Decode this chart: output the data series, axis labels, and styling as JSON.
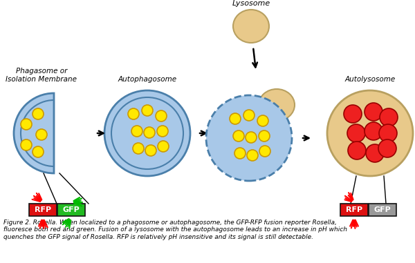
{
  "caption": "Figure 2. Rosella. When localized to a phagosome or autophagosome, the GFP-RFP fusion reporter Rosella,\nfluoresce both red and green. Fusion of a lysosome with the autophagosome leads to an increase in pH which\nquenches the GFP signal of Rosella. RFP is relatively pH insensitive and its signal is still detectable.",
  "lysosome_color": "#E8C98A",
  "lysosome_edge": "#B8A060",
  "phagosome_fill": "#A8C8E8",
  "phagosome_edge": "#4A7FAA",
  "dot_yellow": "#FFE800",
  "dot_yellow_edge": "#CC9900",
  "dot_red": "#EE2020",
  "dot_red_edge": "#990000",
  "autolysosome_fill": "#E8C98A",
  "autolysosome_edge": "#B8A060",
  "rfp_color": "#DD1111",
  "gfp_color": "#22BB22",
  "gfp_quenched": "#999999",
  "label1": "Phagasome or\nIsolation Membrane",
  "label2": "Autophagosome",
  "label3": "Autolysosome",
  "lysosome_label": "Lysosome",
  "background": "#ffffff"
}
